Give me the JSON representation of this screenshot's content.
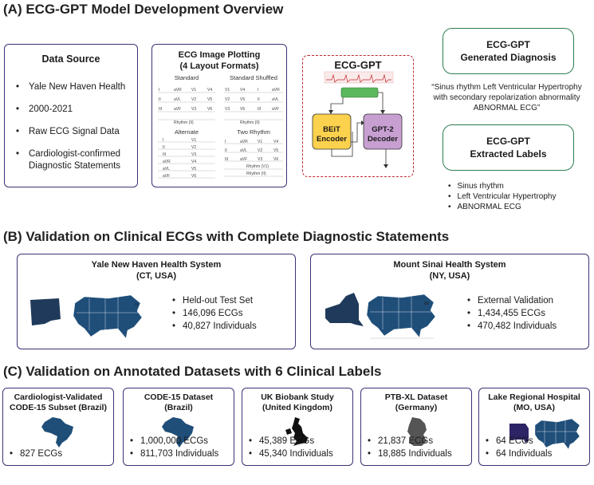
{
  "sections": {
    "a": "(A) ECG-GPT Model Development Overview",
    "b": "(B) Validation on Clinical ECGs with Complete Diagnostic Statements",
    "c": "(C) Validation on Annotated Datasets with 6 Clinical Labels"
  },
  "data_source": {
    "title": "Data Source",
    "items": [
      "Yale New Haven Health",
      "2000-2021",
      "Raw ECG Signal Data",
      "Cardiologist-confirmed Diagnostic Statements"
    ]
  },
  "plotting": {
    "title_line1": "ECG Image Plotting",
    "title_line2": "(4 Layout Formats)",
    "formats": [
      "Standard",
      "Standard Shuffled",
      "Alternate",
      "Two Rhythm"
    ],
    "standard_leads": [
      "I",
      "aVR",
      "V1",
      "V4",
      "II",
      "aVL",
      "V2",
      "V5",
      "III",
      "aVF",
      "V3",
      "V6"
    ],
    "shuffled_leads": [
      "V1",
      "V4",
      "I",
      "aVR",
      "V2",
      "V5",
      "II",
      "aVL",
      "V3",
      "V6",
      "III",
      "aVF"
    ],
    "alternate_left": [
      "I",
      "II",
      "III",
      "aVR",
      "aVL",
      "aVF"
    ],
    "alternate_right": [
      "V1",
      "V2",
      "V3",
      "V4",
      "V5",
      "V6"
    ],
    "two_rhythm_leads": [
      "I",
      "aVR",
      "V1",
      "V4",
      "II",
      "aVL",
      "V2",
      "V5",
      "III",
      "aVF",
      "V3",
      "V6"
    ],
    "rhythm_label": "Rhythm (II)",
    "rhythm_label_2": "Rhythm (V1)"
  },
  "model": {
    "title": "ECG-GPT",
    "encoder": "BEiT Encoder",
    "decoder": "GPT-2 Decoder",
    "encoder_color": "#fcd14d",
    "decoder_color": "#c79fd1",
    "adapter_color": "#5cb85c",
    "border_color": "#c0272d"
  },
  "generated": {
    "title_line1": "ECG-GPT",
    "title_line2": "Generated Diagnosis",
    "quote_line1": "“Sinus rhythm Left Ventricular Hypertrophy",
    "quote_line2": "with secondary repolarization abnormality",
    "quote_line3": "ABNORMAL ECG”"
  },
  "extracted": {
    "title_line1": "ECG-GPT",
    "title_line2": "Extracted Labels",
    "labels": [
      "Sinus rhythm",
      "Left Ventricular Hypertrophy",
      "ABNORMAL ECG"
    ]
  },
  "clinical": [
    {
      "name": "Yale New Haven Health System",
      "region": "(CT, USA)",
      "stats": [
        "Held-out Test Set",
        "146,096 ECGs",
        "40,827 Individuals"
      ],
      "map_icon": "connecticut-map-icon"
    },
    {
      "name": "Mount Sinai Health System",
      "region": "(NY, USA)",
      "stats": [
        "External Validation",
        "1,434,455 ECGs",
        "470,482 Individuals"
      ],
      "map_icon": "new-york-map-icon"
    }
  ],
  "annotated": [
    {
      "line1": "Cardiologist-Validated",
      "line2": "CODE-15 Subset (Brazil)",
      "stats": [
        "827 ECGs"
      ],
      "map_icon": "brazil-map-icon"
    },
    {
      "line1": "CODE-15 Dataset",
      "line2": "(Brazil)",
      "stats": [
        "1,000,000 ECGs",
        "811,703 Individuals"
      ],
      "map_icon": "brazil-map-icon"
    },
    {
      "line1": "UK Biobank Study",
      "line2": "(United Kingdom)",
      "stats": [
        "45,389 ECGs",
        "45,340 Individuals"
      ],
      "map_icon": "uk-map-icon"
    },
    {
      "line1": "PTB-XL Dataset",
      "line2": "(Germany)",
      "stats": [
        "21,837 ECGs",
        "18,885 Individuals"
      ],
      "map_icon": "germany-map-icon"
    },
    {
      "line1": "Lake Regional Hospital",
      "line2": "(MO, USA)",
      "stats": [
        "64 ECGs",
        "64 Individuals"
      ],
      "map_icon": "missouri-map-icon"
    }
  ],
  "colors": {
    "box_border": "#3b3275",
    "green_border": "#2e7d4f",
    "map_blue": "#1f4e79",
    "highlight": "#1f3a5a"
  }
}
